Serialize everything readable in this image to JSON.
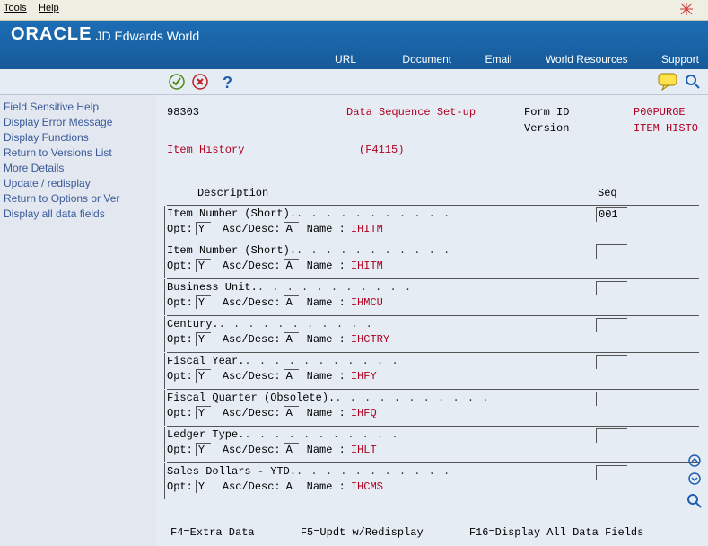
{
  "menu": {
    "tools": "Tools",
    "help": "Help"
  },
  "brand": {
    "oracle": "ORACLE",
    "sub": " JD Edwards World"
  },
  "headerLinks": {
    "url": "URL",
    "document": "Document",
    "email": "Email",
    "world": "World Resources",
    "support": "Support"
  },
  "toolbar": {
    "q": "?"
  },
  "sidebar": [
    "Field Sensitive Help",
    "Display Error Message",
    "Display Functions",
    "Return to Versions List",
    "More Details",
    "Update / redisplay",
    "Return to Options or Ver",
    "Display all data fields"
  ],
  "form": {
    "progId": "98303",
    "title": "Data Sequence Set-up",
    "formIdLabel": "Form ID",
    "formId": "P00PURGE",
    "versionLabel": "Version",
    "version": "ITEM HISTO",
    "subtitle": "Item History",
    "fileId": "(F4115)"
  },
  "cols": {
    "desc": "Description",
    "seq": "Seq"
  },
  "labels": {
    "opt": "Opt:",
    "ascdesc": "Asc/Desc:",
    "name": "Name :"
  },
  "dots10": ". . . . . . . . . . .",
  "dots7": ". . . . . . . . .",
  "entries": [
    {
      "desc": "Item Number (Short)",
      "name": "IHITM",
      "opt": "Y",
      "ad": "A",
      "seq": "001"
    },
    {
      "desc": "Item Number (Short)",
      "name": "IHITM",
      "opt": "Y",
      "ad": "A",
      "seq": ""
    },
    {
      "desc": "Business Unit",
      "name": "IHMCU",
      "opt": "Y",
      "ad": "A",
      "seq": ""
    },
    {
      "desc": "Century",
      "name": "IHCTRY",
      "opt": "Y",
      "ad": "A",
      "seq": ""
    },
    {
      "desc": "Fiscal Year",
      "name": "IHFY",
      "opt": "Y",
      "ad": "A",
      "seq": ""
    },
    {
      "desc": "Fiscal Quarter (Obsolete)",
      "name": "IHFQ",
      "opt": "Y",
      "ad": "A",
      "seq": ""
    },
    {
      "desc": "Ledger Type",
      "name": "IHLT",
      "opt": "Y",
      "ad": "A",
      "seq": ""
    },
    {
      "desc": "Sales Dollars - YTD",
      "name": "IHCM$",
      "opt": "Y",
      "ad": "A",
      "seq": ""
    }
  ],
  "footer": {
    "f4": "F4=Extra Data",
    "f5": "F5=Updt w/Redisplay",
    "f16": "F16=Display All Data Fields"
  }
}
